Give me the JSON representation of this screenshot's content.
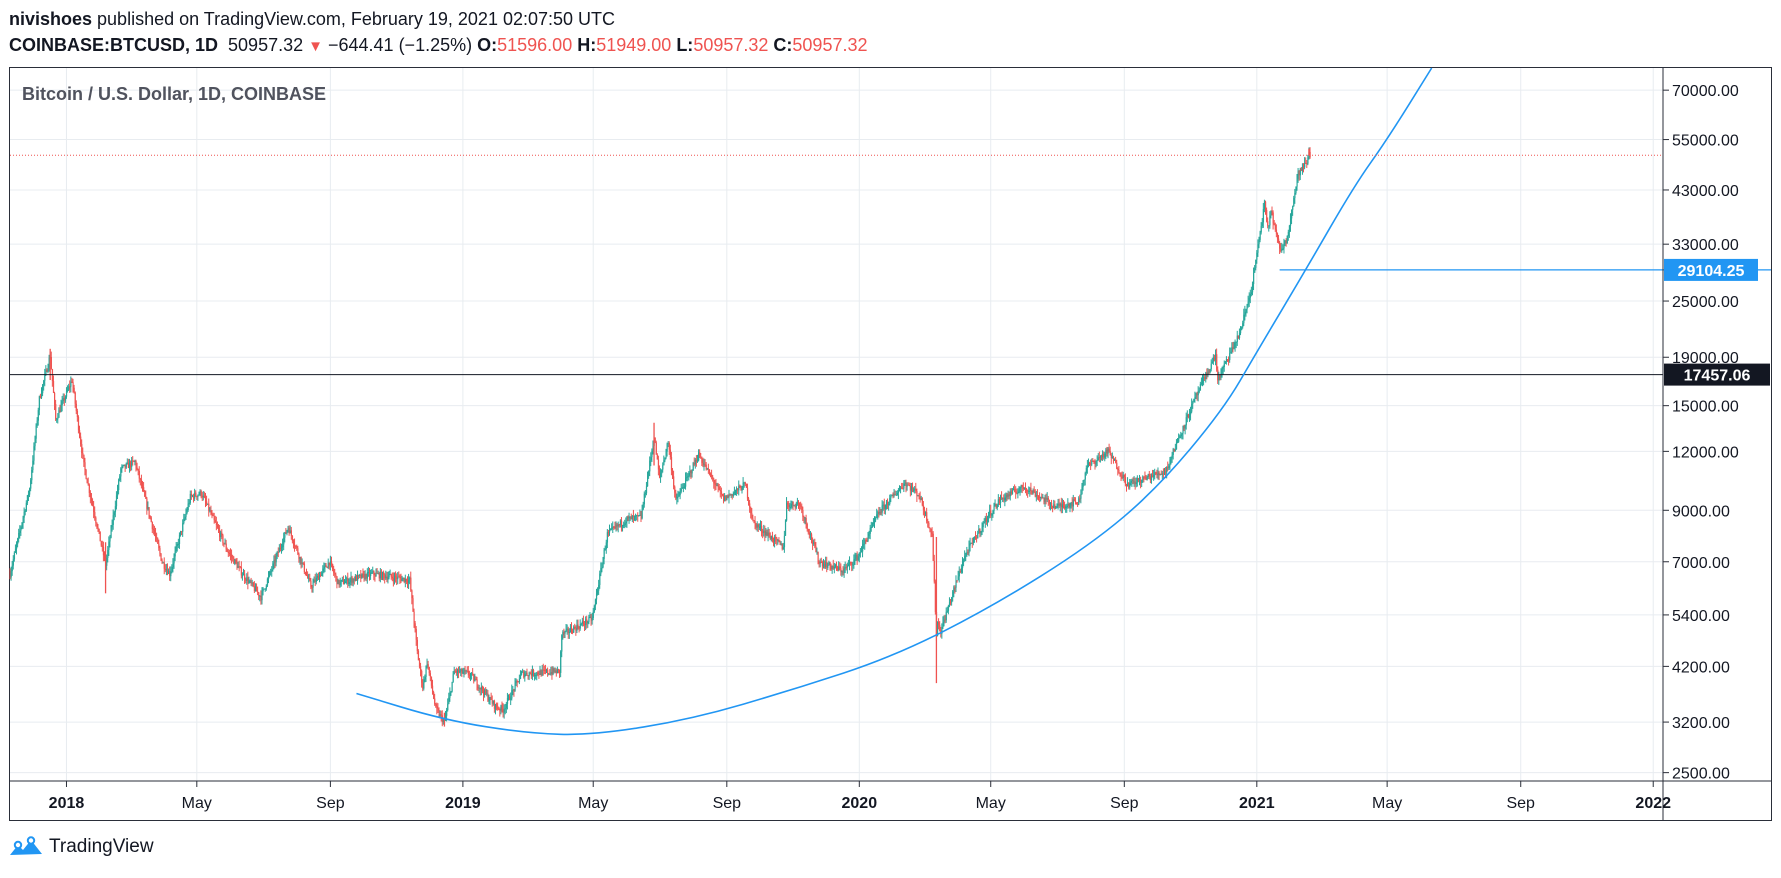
{
  "header": {
    "author": "nivishoes",
    "published_text": " published on TradingView.com, February 19, 2021 02:07:50 UTC",
    "symbol": "COINBASE:BTCUSD, 1D",
    "last": "50957.32",
    "change_arrow": "▼",
    "change": "−644.41 (−1.25%)",
    "o_label": "O:",
    "o_value": "51596.00",
    "h_label": "H:",
    "h_value": "51949.00",
    "l_label": "L:",
    "l_value": "50957.32",
    "c_label": "C:",
    "c_value": "50957.32"
  },
  "footer": {
    "brand": "TradingView",
    "logo_icon": "tradingview-logo-icon"
  },
  "colors": {
    "up": "#26a69a",
    "down": "#ef5350",
    "curve": "#2196f3",
    "grid": "#e8ecf0",
    "text": "#131722"
  },
  "chart_data": {
    "type": "candlestick",
    "title": "Bitcoin / U.S. Dollar, 1D, COINBASE",
    "xlabel": "",
    "ylabel": "",
    "y_scale": "log",
    "y_ticks": [
      70000,
      55000,
      43000,
      33000,
      25000,
      19000,
      15000,
      12000,
      9000,
      7000,
      5400,
      4200,
      3200,
      2500
    ],
    "y_tick_labels": [
      "70000.00",
      "55000.00",
      "43000.00",
      "33000.00",
      "25000.00",
      "19000.00",
      "15000.00",
      "12000.00",
      "9000.00",
      "7000.00",
      "5400.00",
      "4200.00",
      "3200.00",
      "2500.00"
    ],
    "x_ticks": [
      "2018-01-01",
      "2018-05-01",
      "2018-09-01",
      "2019-01-01",
      "2019-05-01",
      "2019-09-01",
      "2020-01-01",
      "2020-05-01",
      "2020-09-01",
      "2021-01-01",
      "2021-05-01",
      "2021-09-01",
      "2022-01-01"
    ],
    "x_tick_labels": [
      "2018",
      "May",
      "Sep",
      "2019",
      "May",
      "Sep",
      "2020",
      "May",
      "Sep",
      "2021",
      "May",
      "Sep",
      "2022"
    ],
    "x_range": [
      "2017-11-10",
      "2022-01-10"
    ],
    "y_range": [
      2400,
      78000
    ],
    "price_path": [
      [
        "2017-11-10",
        6600
      ],
      [
        "2017-11-28",
        10000
      ],
      [
        "2017-12-07",
        15500
      ],
      [
        "2017-12-17",
        19200
      ],
      [
        "2017-12-22",
        14000
      ],
      [
        "2018-01-06",
        17000
      ],
      [
        "2018-01-17",
        11200
      ],
      [
        "2018-02-06",
        6900
      ],
      [
        "2018-02-20",
        11000
      ],
      [
        "2018-03-05",
        11400
      ],
      [
        "2018-03-30",
        7000
      ],
      [
        "2018-04-06",
        6600
      ],
      [
        "2018-04-25",
        9600
      ],
      [
        "2018-05-05",
        9800
      ],
      [
        "2018-05-29",
        7400
      ],
      [
        "2018-06-12",
        6600
      ],
      [
        "2018-06-29",
        5900
      ],
      [
        "2018-07-24",
        8300
      ],
      [
        "2018-08-14",
        6200
      ],
      [
        "2018-08-31",
        7000
      ],
      [
        "2018-09-08",
        6300
      ],
      [
        "2018-10-10",
        6600
      ],
      [
        "2018-11-13",
        6400
      ],
      [
        "2018-11-20",
        4500
      ],
      [
        "2018-11-25",
        3800
      ],
      [
        "2018-11-29",
        4300
      ],
      [
        "2018-12-07",
        3400
      ],
      [
        "2018-12-15",
        3200
      ],
      [
        "2018-12-24",
        4100
      ],
      [
        "2019-01-07",
        4050
      ],
      [
        "2019-01-31",
        3450
      ],
      [
        "2019-02-07",
        3400
      ],
      [
        "2019-02-24",
        4050
      ],
      [
        "2019-03-31",
        4100
      ],
      [
        "2019-04-02",
        4900
      ],
      [
        "2019-04-30",
        5300
      ],
      [
        "2019-05-14",
        8000
      ],
      [
        "2019-05-31",
        8600
      ],
      [
        "2019-06-14",
        8700
      ],
      [
        "2019-06-26",
        12900
      ],
      [
        "2019-07-01",
        10500
      ],
      [
        "2019-07-09",
        12600
      ],
      [
        "2019-07-16",
        9400
      ],
      [
        "2019-08-06",
        11800
      ],
      [
        "2019-08-29",
        9500
      ],
      [
        "2019-09-18",
        10200
      ],
      [
        "2019-09-25",
        8500
      ],
      [
        "2019-10-23",
        7500
      ],
      [
        "2019-10-26",
        9250
      ],
      [
        "2019-11-07",
        9300
      ],
      [
        "2019-11-25",
        7000
      ],
      [
        "2019-12-17",
        6700
      ],
      [
        "2019-12-31",
        7200
      ],
      [
        "2020-01-19",
        8900
      ],
      [
        "2020-02-12",
        10300
      ],
      [
        "2020-02-25",
        9700
      ],
      [
        "2020-03-08",
        8000
      ],
      [
        "2020-03-12",
        4900
      ],
      [
        "2020-03-13",
        5200
      ],
      [
        "2020-03-16",
        5000
      ],
      [
        "2020-04-07",
        7200
      ],
      [
        "2020-04-29",
        8800
      ],
      [
        "2020-05-10",
        9500
      ],
      [
        "2020-06-01",
        10100
      ],
      [
        "2020-06-30",
        9150
      ],
      [
        "2020-07-21",
        9400
      ],
      [
        "2020-07-28",
        11100
      ],
      [
        "2020-08-17",
        12000
      ],
      [
        "2020-09-04",
        10200
      ],
      [
        "2020-10-09",
        10900
      ],
      [
        "2020-10-21",
        12800
      ],
      [
        "2020-11-05",
        15500
      ],
      [
        "2020-11-24",
        19200
      ],
      [
        "2020-11-26",
        17000
      ],
      [
        "2020-12-16",
        21300
      ],
      [
        "2020-12-27",
        26500
      ],
      [
        "2021-01-08",
        40000
      ],
      [
        "2021-01-11",
        35500
      ],
      [
        "2021-01-14",
        39000
      ],
      [
        "2021-01-22",
        32000
      ],
      [
        "2021-01-28",
        33500
      ],
      [
        "2021-02-08",
        46500
      ],
      [
        "2021-02-16",
        49200
      ],
      [
        "2021-02-18",
        51600
      ],
      [
        "2021-02-19",
        50957.32
      ]
    ],
    "wicks": [
      {
        "date": "2017-12-17",
        "low": 17000,
        "high": 19800
      },
      {
        "date": "2018-02-06",
        "low": 6000,
        "high": 7700
      },
      {
        "date": "2018-12-15",
        "low": 3130,
        "high": 3350
      },
      {
        "date": "2019-06-26",
        "low": 11200,
        "high": 13800
      },
      {
        "date": "2020-03-12",
        "low": 3870,
        "high": 7900
      },
      {
        "date": "2021-02-18",
        "low": 50800,
        "high": 52600
      }
    ],
    "annotations": [
      {
        "type": "horizontal_line",
        "value": 17457.06,
        "label": "17457.06",
        "color": "#131722"
      },
      {
        "type": "horizontal_ray",
        "from": "2021-01-22",
        "value": 29104.25,
        "label": "29104.25",
        "color": "#2196f3"
      },
      {
        "type": "curve",
        "color": "#2196f3",
        "points": [
          [
            "2018-09-25",
            3680
          ],
          [
            "2018-12-15",
            3230
          ],
          [
            "2019-03-01",
            3030
          ],
          [
            "2019-05-01",
            3000
          ],
          [
            "2019-08-01",
            3250
          ],
          [
            "2019-11-01",
            3750
          ],
          [
            "2020-02-01",
            4400
          ],
          [
            "2020-05-01",
            5600
          ],
          [
            "2020-08-01",
            7600
          ],
          [
            "2020-10-01",
            10000
          ],
          [
            "2020-12-01",
            14700
          ],
          [
            "2021-01-01",
            19500
          ],
          [
            "2021-02-15",
            29104.25
          ],
          [
            "2021-04-01",
            44000
          ],
          [
            "2021-05-01",
            55000
          ],
          [
            "2021-06-11",
            78000
          ]
        ]
      },
      {
        "type": "dotted_line",
        "value": 50957.32,
        "color": "#ef5350"
      }
    ]
  }
}
